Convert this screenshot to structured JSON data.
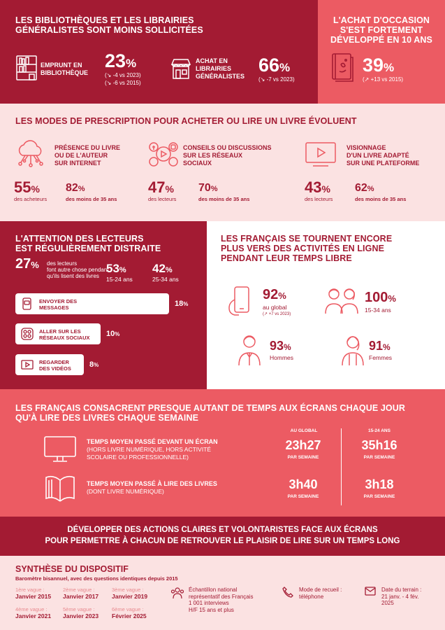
{
  "s1": {
    "title_l1": "LES BIBLIOTHÈQUES ET LES LIBRAIRIES",
    "title_l2": "GÉNÉRALISTES SONT MOINS SOLLICITÉES",
    "emprunt_l1": "EMPRUNT EN",
    "emprunt_l2": "BIBLIOTHÈQUE",
    "emprunt_pct": "23",
    "emprunt_unit": "%",
    "emprunt_d1": "(↘ -4 vs 2023)",
    "emprunt_d2": "(↘ -6 vs 2015)",
    "achat_l1": "ACHAT EN",
    "achat_l2": "LIBRAIRIES",
    "achat_l3": "GÉNÉRALISTES",
    "achat_pct": "66",
    "achat_unit": "%",
    "achat_d1": "(↘ -7 vs 2023)",
    "occ_l1": "L'ACHAT D'OCCASION",
    "occ_l2": "S'EST FORTEMENT",
    "occ_l3": "DÉVELOPPÉ EN 10 ANS",
    "occ_pct": "39",
    "occ_unit": "%",
    "occ_d1": "(↗ +13 vs 2015)"
  },
  "s2": {
    "title": "LES MODES DE PRESCRIPTION POUR ACHETER OU LIRE UN LIVRE ÉVOLUENT",
    "c1_l1": "PRÉSENCE DU LIVRE",
    "c1_l2": "OU DE L'AUTEUR",
    "c1_l3": "SUR INTERNET",
    "c1_p1": "55",
    "c1_p1_lbl": "des acheteurs",
    "c1_p2": "82",
    "c1_p2_lbl": "des moins de 35 ans",
    "c2_l1": "CONSEILS OU DISCUSSIONS",
    "c2_l2": "SUR LES RÉSEAUX",
    "c2_l3": "SOCIAUX",
    "c2_p1": "47",
    "c2_p1_lbl": "des lecteurs",
    "c2_p2": "70",
    "c2_p2_lbl": "des moins de 35 ans",
    "c3_l1": "VISIONNAGE",
    "c3_l2": "D'UN LIVRE ADAPTÉ",
    "c3_l3": "SUR UNE PLATEFORME",
    "c3_p1": "43",
    "c3_p1_lbl": "des lecteurs",
    "c3_p2": "62",
    "c3_p2_lbl": "des moins de 35 ans",
    "pct": "%"
  },
  "s3": {
    "title_l1": "L'ATTENTION DES LECTEURS",
    "title_l2": "EST RÉGULIÈREMENT DISTRAITE",
    "main_pct": "27",
    "main_l1": "des lecteurs",
    "main_l2": "font autre chose pendant",
    "main_l3": "qu'ils lisent des livres",
    "a1_pct": "53",
    "a1_lbl": "15-24 ans",
    "a2_pct": "42",
    "a2_lbl": "25-34 ans",
    "bars": [
      {
        "l1": "ENVOYER DES",
        "l2": "MESSAGES",
        "pct": "18",
        "value": 18
      },
      {
        "l1": "ALLER SUR LES",
        "l2": "RÉSEAUX SOCIAUX",
        "pct": "10",
        "value": 10
      },
      {
        "l1": "REGARDER",
        "l2": "DES VIDÉOS",
        "pct": "8",
        "value": 8
      }
    ],
    "r_title_l1": "LES FRANÇAIS SE TOURNENT ENCORE",
    "r_title_l2": "PLUS VERS DES ACTIVITÉS EN LIGNE",
    "r_title_l3": "PENDANT LEUR TEMPS LIBRE",
    "r1_pct": "92",
    "r1_l1": "au global",
    "r1_l2": "(↗ +7 vs 2023)",
    "r2_pct": "100",
    "r2_l1": "15-34 ans",
    "r3_pct": "93",
    "r3_l1": "Hommes",
    "r4_pct": "91",
    "r4_l1": "Femmes",
    "pct": "%"
  },
  "s4": {
    "title_l1": "LES FRANÇAIS CONSACRENT PRESQUE AUTANT DE TEMPS AUX ÉCRANS CHAQUE JOUR",
    "title_l2": "QU'À LIRE DES LIVRES CHAQUE SEMAINE",
    "col1": "AU GLOBAL",
    "col2": "15-24 ANS",
    "r1_l1": "TEMPS MOYEN PASSÉ DEVANT UN ÉCRAN",
    "r1_l2": "(HORS LIVRE NUMÉRIQUE, HORS ACTIVITÉ",
    "r1_l3": "SCOLAIRE OU PROFESSIONNELLE)",
    "r1_v1": "23h27",
    "r1_v2": "35h16",
    "r2_l1": "TEMPS MOYEN PASSÉ À LIRE DES LIVRES",
    "r2_l2": "(DONT LIVRE NUMÉRIQUE)",
    "r2_v1": "3h40",
    "r2_v2": "3h18",
    "per_week": "PAR SEMAINE"
  },
  "s5": {
    "l1": "DÉVELOPPER DES ACTIONS CLAIRES ET VOLONTARISTES FACE AUX ÉCRANS",
    "l2": "POUR PERMETTRE À CHACUN DE RETROUVER LE PLAISIR DE LIRE SUR UN TEMPS LONG"
  },
  "s6": {
    "title": "SYNTHÈSE DU DISPOSITIF",
    "subtitle": "Baromètre bisannuel, avec des questions identiques depuis 2015",
    "waves": [
      {
        "l": "1ère vague :",
        "v": "Janvier 2015"
      },
      {
        "l": "2ème vague :",
        "v": "Janvier 2017"
      },
      {
        "l": "3ème vague :",
        "v": "Janvier 2019"
      },
      {
        "l": "4ème vague :",
        "v": "Janvier 2021"
      },
      {
        "l": "5ème vague :",
        "v": "Janvier 2023"
      },
      {
        "l": "6ème vague :",
        "v": "Février 2025"
      }
    ],
    "sample_l1": "Échantillon national",
    "sample_l2": "représentatif des Français",
    "sample_l3": "1 001 interviews",
    "sample_l4": "H/F 15 ans et plus",
    "mode_l1": "Mode de recueil :",
    "mode_l2": "téléphone",
    "date_l1": "Date du terrain :",
    "date_l2": "21 janv. - 4 fév.",
    "date_l3": "2025"
  }
}
